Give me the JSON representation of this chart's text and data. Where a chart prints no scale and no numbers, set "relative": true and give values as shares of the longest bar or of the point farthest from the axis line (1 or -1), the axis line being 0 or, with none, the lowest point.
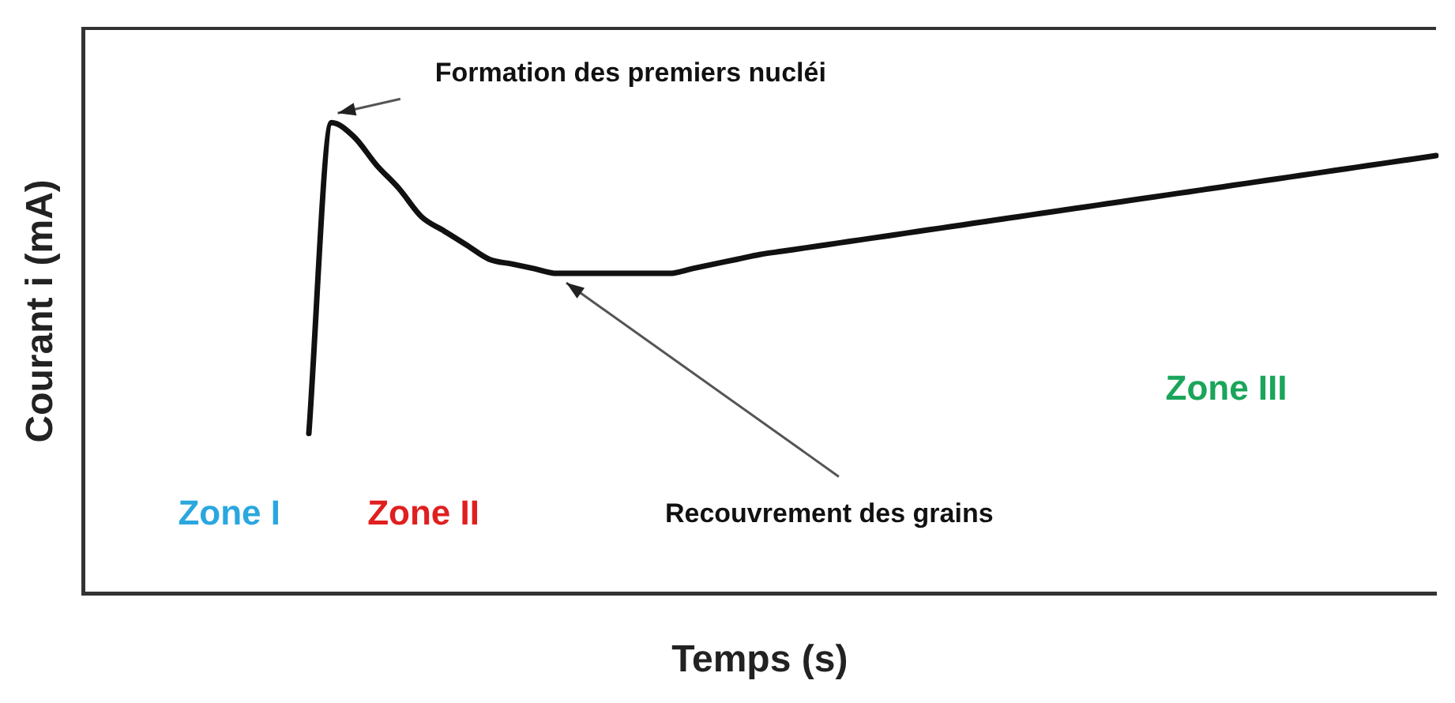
{
  "chart_data": {
    "type": "line",
    "relative": true,
    "xlabel": "Temps (s)",
    "ylabel": "Courant i (mA)",
    "categories": [
      null,
      null,
      null,
      null,
      null,
      null,
      null,
      null,
      null,
      null,
      null,
      null,
      null,
      null,
      null,
      null,
      null,
      null,
      null,
      null,
      null,
      null,
      null,
      null,
      null,
      null,
      null,
      null,
      null,
      null,
      null,
      null,
      null,
      null,
      null,
      null,
      null,
      null,
      null,
      null,
      null,
      null,
      null,
      null,
      null,
      null,
      null,
      null,
      null,
      null,
      null,
      null,
      null,
      null,
      null,
      null,
      null,
      null,
      null,
      null,
      null
    ],
    "series": [
      {
        "color": "#111111",
        "values": [
          null,
          null,
          null,
          null,
          null,
          null,
          null,
          null,
          null,
          null,
          0.34,
          1.0,
          0.97,
          0.91,
          0.86,
          0.8,
          0.77,
          0.74,
          0.71,
          0.7,
          0.69,
          0.68,
          0.68,
          0.68,
          0.68,
          0.68,
          0.68,
          0.69,
          0.7,
          0.71,
          0.72,
          0.727,
          0.734,
          0.741,
          0.748,
          0.755,
          0.762,
          0.769,
          0.776,
          0.783,
          0.79,
          0.797,
          0.804,
          0.811,
          0.818,
          0.825,
          0.832,
          0.839,
          0.846,
          0.853,
          0.86,
          0.867,
          0.874,
          0.881,
          0.888,
          0.895,
          0.902,
          0.909,
          0.916,
          0.923,
          0.93
        ]
      }
    ],
    "annotations": [
      "Formation des premiers nucléi",
      "Zone I",
      "Zone II",
      "Recouvrement des grains",
      "Zone III"
    ],
    "grid": false,
    "legend": false,
    "marker": "none",
    "line_style": "solid"
  }
}
